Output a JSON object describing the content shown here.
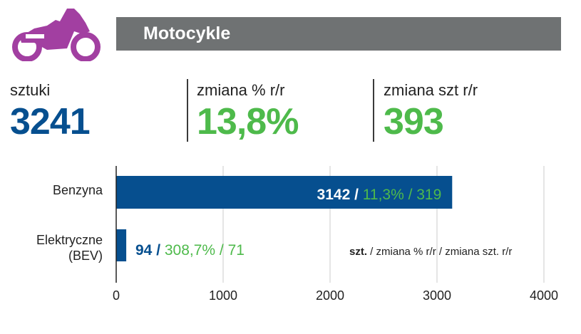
{
  "colors": {
    "icon": "#a23fa1",
    "title_bar": "#6f7273",
    "blue": "#064f8f",
    "green": "#4eba4b",
    "grid": "#d4d4d4",
    "axis": "#222222"
  },
  "header": {
    "icon": "motorcycle-icon",
    "title": "Motocykle"
  },
  "stats": [
    {
      "label": "sztuki",
      "value": "3241",
      "color": "#064f8f"
    },
    {
      "label": "zmiana % r/r",
      "value": "13,8%",
      "color": "#4eba4b"
    },
    {
      "label": "zmiana szt r/r",
      "value": "393",
      "color": "#4eba4b"
    }
  ],
  "chart_data": {
    "type": "bar",
    "orientation": "horizontal",
    "categories": [
      "Benzyna",
      "Elektryczne\n(BEV)"
    ],
    "values": [
      3142,
      94
    ],
    "label_units": [
      "3142",
      "94"
    ],
    "label_pct": [
      "11,3%",
      "308,7%"
    ],
    "label_diff": [
      "319",
      "71"
    ],
    "xlim": [
      0,
      4000
    ],
    "xticks": [
      0,
      1000,
      2000,
      3000,
      4000
    ],
    "tick_labels": [
      "0",
      "1000",
      "2000",
      "3000",
      "4000"
    ],
    "grid": true,
    "legend": {
      "bold": "szt.",
      "rest": " / zmiana % r/r / zmiana szt. r/r"
    }
  }
}
